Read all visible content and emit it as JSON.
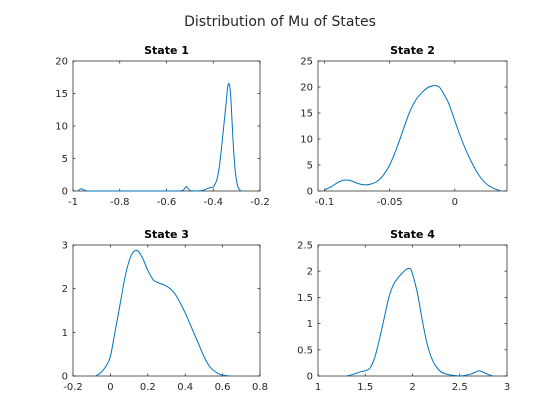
{
  "figure": {
    "title": "Distribution of Mu of States",
    "line_color": "#0072bd",
    "axis_color": "#262626"
  },
  "chart_data": [
    {
      "type": "line",
      "title": "State 1",
      "xlim": [
        -1,
        -0.2
      ],
      "ylim": [
        0,
        20
      ],
      "xticks": [
        -1,
        -0.8,
        -0.6,
        -0.4,
        -0.2
      ],
      "xtick_labels": [
        "-1",
        "-0.8",
        "-0.6",
        "-0.4",
        "-0.2"
      ],
      "yticks": [
        0,
        5,
        10,
        15,
        20
      ],
      "ytick_labels": [
        "0",
        "5",
        "10",
        "15",
        "20"
      ],
      "grid": false,
      "series": [
        {
          "x": [
            -0.98,
            -0.97,
            -0.965,
            -0.955,
            -0.945,
            -0.93,
            -0.9,
            -0.8,
            -0.7,
            -0.6,
            -0.55,
            -0.53,
            -0.52,
            -0.515,
            -0.51,
            -0.5,
            -0.48,
            -0.45,
            -0.43,
            -0.415,
            -0.41,
            -0.405,
            -0.4,
            -0.395,
            -0.385,
            -0.375,
            -0.365,
            -0.355,
            -0.345,
            -0.34,
            -0.335,
            -0.33,
            -0.325,
            -0.32,
            -0.315,
            -0.31,
            -0.305,
            -0.3,
            -0.295,
            -0.29,
            -0.285,
            -0.28
          ],
          "y": [
            0,
            0.25,
            0.35,
            0.2,
            0.05,
            0,
            0,
            0,
            0,
            0,
            0,
            0.1,
            0.5,
            0.7,
            0.5,
            0.1,
            0,
            0.05,
            0.3,
            0.5,
            0.55,
            0.5,
            0.6,
            0.9,
            1.7,
            3.5,
            6.5,
            10,
            13.5,
            15.5,
            16.5,
            16.2,
            14.5,
            11,
            7.5,
            4.8,
            2.8,
            1.5,
            0.7,
            0.3,
            0.1,
            0
          ]
        }
      ]
    },
    {
      "type": "line",
      "title": "State 2",
      "xlim": [
        -0.105,
        0.04
      ],
      "ylim": [
        0,
        25
      ],
      "xticks": [
        -0.1,
        -0.05,
        0
      ],
      "xtick_labels": [
        "-0.1",
        "-0.05",
        "0"
      ],
      "yticks": [
        0,
        5,
        10,
        15,
        20,
        25
      ],
      "ytick_labels": [
        "0",
        "5",
        "10",
        "15",
        "20",
        "25"
      ],
      "grid": false,
      "series": [
        {
          "x": [
            -0.1,
            -0.095,
            -0.09,
            -0.085,
            -0.08,
            -0.075,
            -0.07,
            -0.065,
            -0.06,
            -0.055,
            -0.05,
            -0.045,
            -0.04,
            -0.035,
            -0.03,
            -0.025,
            -0.02,
            -0.015,
            -0.012,
            -0.01,
            -0.005,
            0,
            0.005,
            0.01,
            0.015,
            0.02,
            0.025,
            0.03,
            0.033,
            0.035
          ],
          "y": [
            0.2,
            0.8,
            1.6,
            2.1,
            2.0,
            1.5,
            1.2,
            1.3,
            1.8,
            3.0,
            5.0,
            8.0,
            11.5,
            15.0,
            17.5,
            19.0,
            20.0,
            20.3,
            20.0,
            19.3,
            17.0,
            13.5,
            10.0,
            7.0,
            4.5,
            2.5,
            1.2,
            0.5,
            0.2,
            0.1
          ]
        }
      ]
    },
    {
      "type": "line",
      "title": "State 3",
      "xlim": [
        -0.2,
        0.8
      ],
      "ylim": [
        0,
        3
      ],
      "xticks": [
        -0.2,
        0,
        0.2,
        0.4,
        0.6,
        0.8
      ],
      "xtick_labels": [
        "-0.2",
        "0",
        "0.2",
        "0.4",
        "0.6",
        "0.8"
      ],
      "yticks": [
        0,
        1,
        2,
        3
      ],
      "ytick_labels": [
        "0",
        "1",
        "2",
        "3"
      ],
      "grid": false,
      "series": [
        {
          "x": [
            -0.08,
            -0.05,
            -0.02,
            0,
            0.02,
            0.05,
            0.08,
            0.11,
            0.14,
            0.17,
            0.2,
            0.23,
            0.26,
            0.29,
            0.32,
            0.35,
            0.38,
            0.41,
            0.44,
            0.47,
            0.5,
            0.53,
            0.56,
            0.59,
            0.62,
            0.64
          ],
          "y": [
            0,
            0.08,
            0.25,
            0.45,
            0.9,
            1.6,
            2.3,
            2.75,
            2.88,
            2.72,
            2.42,
            2.2,
            2.13,
            2.08,
            2.0,
            1.85,
            1.62,
            1.35,
            1.05,
            0.75,
            0.45,
            0.22,
            0.1,
            0.03,
            0.01,
            0
          ]
        }
      ]
    },
    {
      "type": "line",
      "title": "State 4",
      "xlim": [
        1,
        3
      ],
      "ylim": [
        0,
        2.5
      ],
      "xticks": [
        1,
        1.5,
        2,
        2.5,
        3
      ],
      "xtick_labels": [
        "1",
        "1.5",
        "2",
        "2.5",
        "3"
      ],
      "yticks": [
        0,
        0.5,
        1,
        1.5,
        2,
        2.5
      ],
      "ytick_labels": [
        "0",
        "0.5",
        "1",
        "1.5",
        "2",
        "2.5"
      ],
      "grid": false,
      "series": [
        {
          "x": [
            1.3,
            1.35,
            1.4,
            1.45,
            1.5,
            1.55,
            1.6,
            1.65,
            1.7,
            1.75,
            1.8,
            1.85,
            1.9,
            1.95,
            1.98,
            2.0,
            2.05,
            2.1,
            2.15,
            2.2,
            2.25,
            2.3,
            2.35,
            2.4,
            2.45,
            2.5,
            2.55,
            2.6,
            2.65,
            2.7,
            2.75,
            2.8,
            2.85
          ],
          "y": [
            0,
            0.02,
            0.05,
            0.08,
            0.1,
            0.15,
            0.35,
            0.7,
            1.1,
            1.5,
            1.75,
            1.88,
            1.98,
            2.05,
            2.04,
            1.95,
            1.6,
            1.1,
            0.65,
            0.35,
            0.18,
            0.08,
            0.04,
            0.02,
            0.01,
            0,
            0.01,
            0.03,
            0.06,
            0.1,
            0.07,
            0.03,
            0
          ]
        }
      ]
    }
  ]
}
